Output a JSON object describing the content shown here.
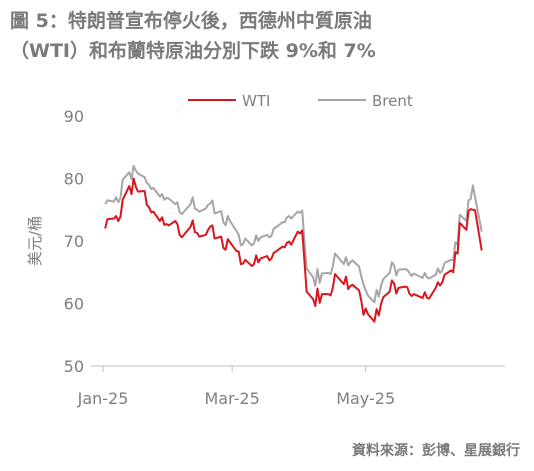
{
  "title_line1": "圖 5：特朗普宣布停火後，西德州中質原油",
  "title_line2": "（WTI）和布蘭特原油分別下跌 9%和 7%",
  "source": "資料來源：彭博、星展銀行",
  "chart_data": {
    "type": "line",
    "ylabel": "美元/桶",
    "ylim": [
      50,
      90
    ],
    "yticks": [
      50,
      60,
      70,
      80,
      90
    ],
    "xlim": [
      "2025-01-01",
      "2025-06-30"
    ],
    "xticks": [
      {
        "date": "2025-01-01",
        "label": "Jan-25"
      },
      {
        "date": "2025-03-01",
        "label": "Mar-25"
      },
      {
        "date": "2025-05-01",
        "label": "May-25"
      }
    ],
    "grid": false,
    "legend": "top-center",
    "series": [
      {
        "name": "WTI",
        "color": "#d9161f",
        "points": [
          [
            "2025-01-02",
            72.0
          ],
          [
            "2025-01-03",
            73.5
          ],
          [
            "2025-01-06",
            73.6
          ],
          [
            "2025-01-07",
            74.0
          ],
          [
            "2025-01-08",
            73.2
          ],
          [
            "2025-01-09",
            73.9
          ],
          [
            "2025-01-10",
            76.6
          ],
          [
            "2025-01-13",
            78.8
          ],
          [
            "2025-01-14",
            77.5
          ],
          [
            "2025-01-15",
            80.0
          ],
          [
            "2025-01-16",
            78.7
          ],
          [
            "2025-01-17",
            77.9
          ],
          [
            "2025-01-20",
            78.0
          ],
          [
            "2025-01-21",
            75.8
          ],
          [
            "2025-01-22",
            75.4
          ],
          [
            "2025-01-23",
            74.6
          ],
          [
            "2025-01-24",
            74.7
          ],
          [
            "2025-01-27",
            73.2
          ],
          [
            "2025-01-28",
            73.8
          ],
          [
            "2025-01-29",
            72.6
          ],
          [
            "2025-01-30",
            72.7
          ],
          [
            "2025-01-31",
            72.5
          ],
          [
            "2025-02-03",
            73.2
          ],
          [
            "2025-02-04",
            72.7
          ],
          [
            "2025-02-05",
            71.0
          ],
          [
            "2025-02-06",
            70.6
          ],
          [
            "2025-02-07",
            71.0
          ],
          [
            "2025-02-10",
            72.3
          ],
          [
            "2025-02-11",
            73.3
          ],
          [
            "2025-02-12",
            71.4
          ],
          [
            "2025-02-13",
            71.3
          ],
          [
            "2025-02-14",
            70.7
          ],
          [
            "2025-02-17",
            71.0
          ],
          [
            "2025-02-18",
            71.8
          ],
          [
            "2025-02-19",
            72.3
          ],
          [
            "2025-02-20",
            72.5
          ],
          [
            "2025-02-21",
            70.4
          ],
          [
            "2025-02-24",
            70.7
          ],
          [
            "2025-02-25",
            68.9
          ],
          [
            "2025-02-26",
            68.6
          ],
          [
            "2025-02-27",
            70.3
          ],
          [
            "2025-02-28",
            69.8
          ],
          [
            "2025-03-03",
            68.4
          ],
          [
            "2025-03-04",
            68.3
          ],
          [
            "2025-03-05",
            66.3
          ],
          [
            "2025-03-06",
            66.4
          ],
          [
            "2025-03-07",
            67.0
          ],
          [
            "2025-03-10",
            66.0
          ],
          [
            "2025-03-11",
            66.3
          ],
          [
            "2025-03-12",
            67.7
          ],
          [
            "2025-03-13",
            66.6
          ],
          [
            "2025-03-14",
            67.2
          ],
          [
            "2025-03-17",
            67.6
          ],
          [
            "2025-03-18",
            66.9
          ],
          [
            "2025-03-19",
            67.2
          ],
          [
            "2025-03-20",
            68.1
          ],
          [
            "2025-03-21",
            68.3
          ],
          [
            "2025-03-24",
            69.1
          ],
          [
            "2025-03-25",
            69.0
          ],
          [
            "2025-03-26",
            69.7
          ],
          [
            "2025-03-27",
            69.9
          ],
          [
            "2025-03-28",
            69.4
          ],
          [
            "2025-03-31",
            71.5
          ],
          [
            "2025-04-01",
            71.2
          ],
          [
            "2025-04-02",
            71.7
          ],
          [
            "2025-04-03",
            66.9
          ],
          [
            "2025-04-04",
            61.9
          ],
          [
            "2025-04-07",
            60.7
          ],
          [
            "2025-04-08",
            59.6
          ],
          [
            "2025-04-09",
            62.4
          ],
          [
            "2025-04-10",
            60.1
          ],
          [
            "2025-04-11",
            61.5
          ],
          [
            "2025-04-14",
            61.5
          ],
          [
            "2025-04-15",
            61.3
          ],
          [
            "2025-04-16",
            62.5
          ],
          [
            "2025-04-17",
            64.7
          ],
          [
            "2025-04-21",
            63.1
          ],
          [
            "2025-04-22",
            64.3
          ],
          [
            "2025-04-23",
            62.3
          ],
          [
            "2025-04-24",
            62.8
          ],
          [
            "2025-04-25",
            63.0
          ],
          [
            "2025-04-28",
            62.1
          ],
          [
            "2025-04-29",
            60.4
          ],
          [
            "2025-04-30",
            58.2
          ],
          [
            "2025-05-01",
            59.2
          ],
          [
            "2025-05-02",
            58.3
          ],
          [
            "2025-05-05",
            57.1
          ],
          [
            "2025-05-06",
            59.1
          ],
          [
            "2025-05-07",
            58.1
          ],
          [
            "2025-05-08",
            59.9
          ],
          [
            "2025-05-09",
            61.0
          ],
          [
            "2025-05-12",
            61.9
          ],
          [
            "2025-05-13",
            63.7
          ],
          [
            "2025-05-14",
            63.2
          ],
          [
            "2025-05-15",
            61.6
          ],
          [
            "2025-05-16",
            62.5
          ],
          [
            "2025-05-19",
            62.7
          ],
          [
            "2025-05-20",
            62.6
          ],
          [
            "2025-05-21",
            61.6
          ],
          [
            "2025-05-22",
            61.2
          ],
          [
            "2025-05-23",
            61.5
          ],
          [
            "2025-05-27",
            60.9
          ],
          [
            "2025-05-28",
            61.8
          ],
          [
            "2025-05-29",
            60.9
          ],
          [
            "2025-05-30",
            60.8
          ],
          [
            "2025-06-02",
            62.5
          ],
          [
            "2025-06-03",
            63.4
          ],
          [
            "2025-06-04",
            62.9
          ],
          [
            "2025-06-05",
            63.4
          ],
          [
            "2025-06-06",
            64.6
          ],
          [
            "2025-06-09",
            65.3
          ],
          [
            "2025-06-10",
            65.0
          ],
          [
            "2025-06-11",
            68.2
          ],
          [
            "2025-06-12",
            68.0
          ],
          [
            "2025-06-13",
            72.9
          ],
          [
            "2025-06-16",
            71.8
          ],
          [
            "2025-06-17",
            74.8
          ],
          [
            "2025-06-18",
            75.1
          ],
          [
            "2025-06-19",
            75.0
          ],
          [
            "2025-06-20",
            74.9
          ],
          [
            "2025-06-23",
            68.5
          ]
        ]
      },
      {
        "name": "Brent",
        "color": "#a6a6a6",
        "points": [
          [
            "2025-01-02",
            75.9
          ],
          [
            "2025-01-03",
            76.5
          ],
          [
            "2025-01-06",
            76.3
          ],
          [
            "2025-01-07",
            77.0
          ],
          [
            "2025-01-08",
            76.2
          ],
          [
            "2025-01-09",
            76.9
          ],
          [
            "2025-01-10",
            79.8
          ],
          [
            "2025-01-13",
            81.0
          ],
          [
            "2025-01-14",
            79.9
          ],
          [
            "2025-01-15",
            82.0
          ],
          [
            "2025-01-16",
            81.3
          ],
          [
            "2025-01-17",
            80.8
          ],
          [
            "2025-01-20",
            80.2
          ],
          [
            "2025-01-21",
            79.3
          ],
          [
            "2025-01-22",
            79.0
          ],
          [
            "2025-01-23",
            78.3
          ],
          [
            "2025-01-24",
            78.5
          ],
          [
            "2025-01-27",
            77.1
          ],
          [
            "2025-01-28",
            77.5
          ],
          [
            "2025-01-29",
            76.6
          ],
          [
            "2025-01-30",
            76.9
          ],
          [
            "2025-01-31",
            76.8
          ],
          [
            "2025-02-03",
            75.9
          ],
          [
            "2025-02-04",
            76.2
          ],
          [
            "2025-02-05",
            74.6
          ],
          [
            "2025-02-06",
            74.3
          ],
          [
            "2025-02-07",
            74.7
          ],
          [
            "2025-02-10",
            75.9
          ],
          [
            "2025-02-11",
            77.0
          ],
          [
            "2025-02-12",
            75.2
          ],
          [
            "2025-02-13",
            75.0
          ],
          [
            "2025-02-14",
            74.7
          ],
          [
            "2025-02-17",
            75.2
          ],
          [
            "2025-02-18",
            75.8
          ],
          [
            "2025-02-19",
            76.0
          ],
          [
            "2025-02-20",
            76.5
          ],
          [
            "2025-02-21",
            74.4
          ],
          [
            "2025-02-24",
            74.8
          ],
          [
            "2025-02-25",
            73.0
          ],
          [
            "2025-02-26",
            72.5
          ],
          [
            "2025-02-27",
            74.0
          ],
          [
            "2025-02-28",
            73.2
          ],
          [
            "2025-03-03",
            71.6
          ],
          [
            "2025-03-04",
            71.0
          ],
          [
            "2025-03-05",
            69.3
          ],
          [
            "2025-03-06",
            69.5
          ],
          [
            "2025-03-07",
            70.4
          ],
          [
            "2025-03-10",
            69.3
          ],
          [
            "2025-03-11",
            69.6
          ],
          [
            "2025-03-12",
            70.9
          ],
          [
            "2025-03-13",
            70.0
          ],
          [
            "2025-03-14",
            70.6
          ],
          [
            "2025-03-17",
            71.0
          ],
          [
            "2025-03-18",
            70.6
          ],
          [
            "2025-03-19",
            70.8
          ],
          [
            "2025-03-20",
            72.0
          ],
          [
            "2025-03-21",
            72.2
          ],
          [
            "2025-03-24",
            73.0
          ],
          [
            "2025-03-25",
            73.0
          ],
          [
            "2025-03-26",
            73.8
          ],
          [
            "2025-03-27",
            74.0
          ],
          [
            "2025-03-28",
            73.6
          ],
          [
            "2025-03-31",
            74.7
          ],
          [
            "2025-04-01",
            74.5
          ],
          [
            "2025-04-02",
            74.9
          ],
          [
            "2025-04-03",
            70.1
          ],
          [
            "2025-04-04",
            65.6
          ],
          [
            "2025-04-07",
            64.2
          ],
          [
            "2025-04-08",
            62.8
          ],
          [
            "2025-04-09",
            65.5
          ],
          [
            "2025-04-10",
            63.3
          ],
          [
            "2025-04-11",
            64.8
          ],
          [
            "2025-04-14",
            64.9
          ],
          [
            "2025-04-15",
            64.7
          ],
          [
            "2025-04-16",
            65.9
          ],
          [
            "2025-04-17",
            68.0
          ],
          [
            "2025-04-21",
            66.3
          ],
          [
            "2025-04-22",
            67.4
          ],
          [
            "2025-04-23",
            66.1
          ],
          [
            "2025-04-24",
            66.6
          ],
          [
            "2025-04-25",
            66.9
          ],
          [
            "2025-04-28",
            65.9
          ],
          [
            "2025-04-29",
            64.3
          ],
          [
            "2025-04-30",
            63.1
          ],
          [
            "2025-05-01",
            62.1
          ],
          [
            "2025-05-02",
            61.3
          ],
          [
            "2025-05-05",
            60.2
          ],
          [
            "2025-05-06",
            62.2
          ],
          [
            "2025-05-07",
            61.1
          ],
          [
            "2025-05-08",
            62.8
          ],
          [
            "2025-05-09",
            63.9
          ],
          [
            "2025-05-12",
            64.9
          ],
          [
            "2025-05-13",
            66.6
          ],
          [
            "2025-05-14",
            66.1
          ],
          [
            "2025-05-15",
            64.5
          ],
          [
            "2025-05-16",
            65.4
          ],
          [
            "2025-05-19",
            65.5
          ],
          [
            "2025-05-20",
            65.4
          ],
          [
            "2025-05-21",
            64.9
          ],
          [
            "2025-05-22",
            64.4
          ],
          [
            "2025-05-23",
            64.8
          ],
          [
            "2025-05-27",
            64.1
          ],
          [
            "2025-05-28",
            64.9
          ],
          [
            "2025-05-29",
            64.2
          ],
          [
            "2025-05-30",
            64.0
          ],
          [
            "2025-06-02",
            64.6
          ],
          [
            "2025-06-03",
            65.6
          ],
          [
            "2025-06-04",
            64.9
          ],
          [
            "2025-06-05",
            65.3
          ],
          [
            "2025-06-06",
            66.5
          ],
          [
            "2025-06-09",
            67.0
          ],
          [
            "2025-06-10",
            66.9
          ],
          [
            "2025-06-11",
            69.8
          ],
          [
            "2025-06-12",
            69.4
          ],
          [
            "2025-06-13",
            74.2
          ],
          [
            "2025-06-16",
            73.2
          ],
          [
            "2025-06-17",
            76.5
          ],
          [
            "2025-06-18",
            76.7
          ],
          [
            "2025-06-19",
            78.9
          ],
          [
            "2025-06-20",
            77.0
          ],
          [
            "2025-06-23",
            71.5
          ]
        ]
      }
    ]
  }
}
